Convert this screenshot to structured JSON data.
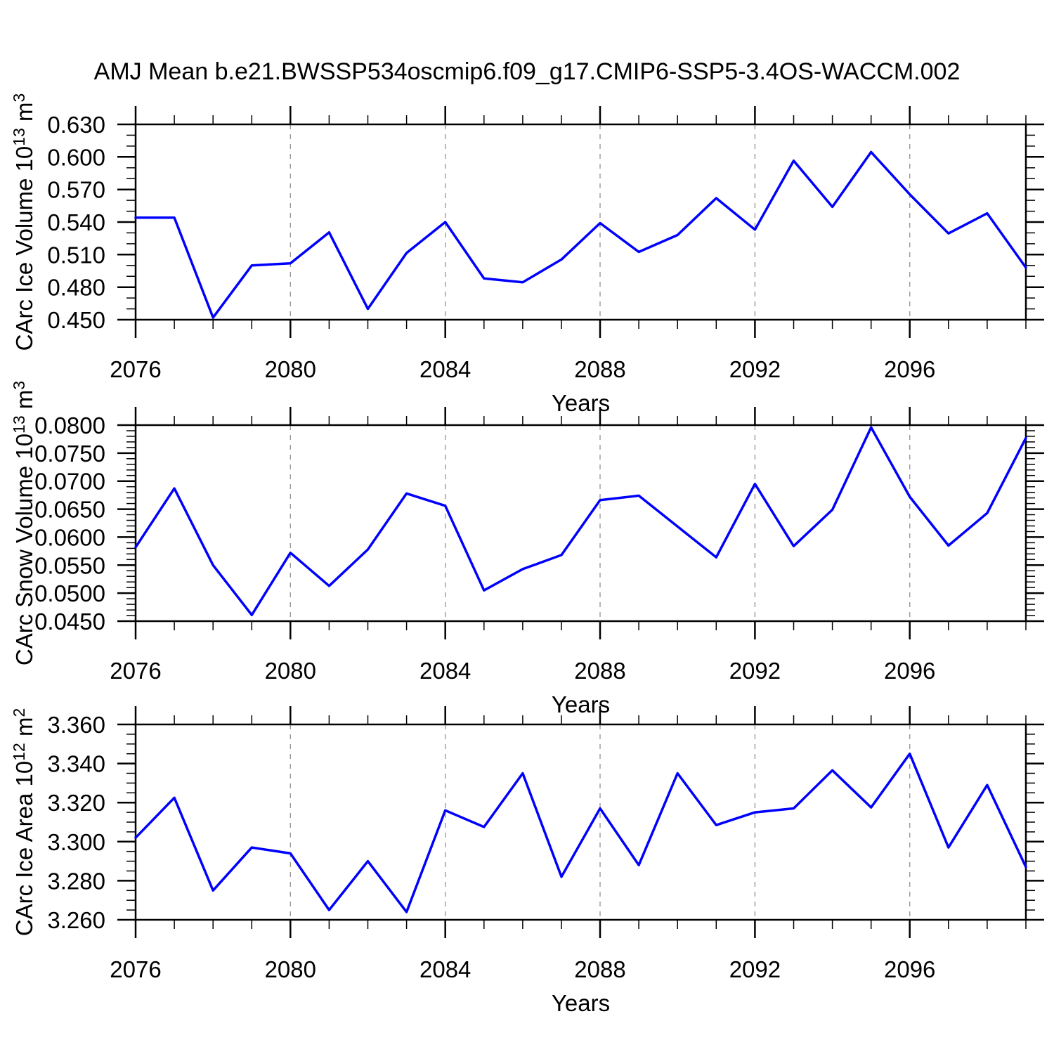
{
  "title": "AMJ Mean b.e21.BWSSP534oscmip6.f09_g17.CMIP6-SSP5-3.4OS-WACCM.002",
  "colors": {
    "line": "#0000ff",
    "axis": "#000000",
    "grid": "#9a9a9a",
    "text": "#000000",
    "background": "#ffffff"
  },
  "x_axis": {
    "label": "Years",
    "min": 2076,
    "max": 2099,
    "major_ticks": [
      2076,
      2080,
      2084,
      2088,
      2092,
      2096
    ],
    "minor_step": 1,
    "gridlines": [
      2080,
      2084,
      2088,
      2092,
      2096
    ]
  },
  "categories": [
    2076,
    2077,
    2078,
    2079,
    2080,
    2081,
    2082,
    2083,
    2084,
    2085,
    2086,
    2087,
    2088,
    2089,
    2090,
    2091,
    2092,
    2093,
    2094,
    2095,
    2096,
    2097,
    2098,
    2099
  ],
  "chart_data": [
    {
      "type": "line",
      "id": "ice-volume",
      "xlabel": "Years",
      "ylabel": "CArc Ice Volume 10^13 m^3",
      "ylabel_parts": {
        "prefix": "CArc Ice Volume 10",
        "exp": "13",
        "unit": " m",
        "unit_exp": "3"
      },
      "x": [
        2076,
        2077,
        2078,
        2079,
        2080,
        2081,
        2082,
        2083,
        2084,
        2085,
        2086,
        2087,
        2088,
        2089,
        2090,
        2091,
        2092,
        2093,
        2094,
        2095,
        2096,
        2097,
        2098,
        2099
      ],
      "values": [
        0.544,
        0.544,
        0.452,
        0.5,
        0.502,
        0.5305,
        0.46,
        0.5115,
        0.54,
        0.488,
        0.4845,
        0.5055,
        0.539,
        0.5125,
        0.528,
        0.562,
        0.533,
        0.5965,
        0.554,
        0.6045,
        0.5655,
        0.5295,
        0.548,
        0.498
      ],
      "y_axis": {
        "min": 0.45,
        "max": 0.63,
        "minor_step": 0.01,
        "major_ticks": [
          {
            "value": 0.63,
            "label": "0.630"
          },
          {
            "value": 0.6,
            "label": "0.600"
          },
          {
            "value": 0.57,
            "label": "0.570"
          },
          {
            "value": 0.54,
            "label": "0.540"
          },
          {
            "value": 0.51,
            "label": "0.510"
          },
          {
            "value": 0.48,
            "label": "0.480"
          },
          {
            "value": 0.45,
            "label": "0.450"
          }
        ]
      }
    },
    {
      "type": "line",
      "id": "snow-volume",
      "xlabel": "Years",
      "ylabel": "CArc Snow Volume 10^13 m^3",
      "ylabel_parts": {
        "prefix": "CArc Snow Volume 10",
        "exp": "13",
        "unit": " m",
        "unit_exp": "3"
      },
      "x": [
        2076,
        2077,
        2078,
        2079,
        2080,
        2081,
        2082,
        2083,
        2084,
        2085,
        2086,
        2087,
        2088,
        2089,
        2090,
        2091,
        2092,
        2093,
        2094,
        2095,
        2096,
        2097,
        2098,
        2099
      ],
      "values": [
        0.0582,
        0.0687,
        0.055,
        0.0461,
        0.0572,
        0.0513,
        0.0578,
        0.0678,
        0.0656,
        0.0505,
        0.0543,
        0.0568,
        0.0666,
        0.0674,
        0.0619,
        0.0564,
        0.0695,
        0.0584,
        0.0649,
        0.0796,
        0.0672,
        0.0585,
        0.0643,
        0.0777
      ],
      "y_axis": {
        "min": 0.045,
        "max": 0.08,
        "minor_step": 0.001,
        "major_ticks": [
          {
            "value": 0.08,
            "label": "0.0800"
          },
          {
            "value": 0.075,
            "label": "0.0750"
          },
          {
            "value": 0.07,
            "label": "0.0700"
          },
          {
            "value": 0.065,
            "label": "0.0650"
          },
          {
            "value": 0.06,
            "label": "0.0600"
          },
          {
            "value": 0.055,
            "label": "0.0550"
          },
          {
            "value": 0.05,
            "label": "0.0500"
          },
          {
            "value": 0.045,
            "label": "0.0450"
          }
        ]
      }
    },
    {
      "type": "line",
      "id": "ice-area",
      "xlabel": "Years",
      "ylabel": "CArc Ice Area 10^12 m^2",
      "ylabel_parts": {
        "prefix": "CArc Ice Area 10",
        "exp": "12",
        "unit": " m",
        "unit_exp": "2"
      },
      "x": [
        2076,
        2077,
        2078,
        2079,
        2080,
        2081,
        2082,
        2083,
        2084,
        2085,
        2086,
        2087,
        2088,
        2089,
        2090,
        2091,
        2092,
        2093,
        2094,
        2095,
        2096,
        2097,
        2098,
        2099
      ],
      "values": [
        3.302,
        3.3225,
        3.275,
        3.297,
        3.294,
        3.265,
        3.29,
        3.264,
        3.316,
        3.3075,
        3.335,
        3.282,
        3.317,
        3.288,
        3.335,
        3.3085,
        3.315,
        3.317,
        3.3365,
        3.3175,
        3.345,
        3.297,
        3.329,
        3.287
      ],
      "y_axis": {
        "min": 3.26,
        "max": 3.36,
        "minor_step": 0.005,
        "major_ticks": [
          {
            "value": 3.36,
            "label": "3.360"
          },
          {
            "value": 3.34,
            "label": "3.340"
          },
          {
            "value": 3.32,
            "label": "3.320"
          },
          {
            "value": 3.3,
            "label": "3.300"
          },
          {
            "value": 3.28,
            "label": "3.280"
          },
          {
            "value": 3.26,
            "label": "3.260"
          }
        ]
      }
    }
  ]
}
